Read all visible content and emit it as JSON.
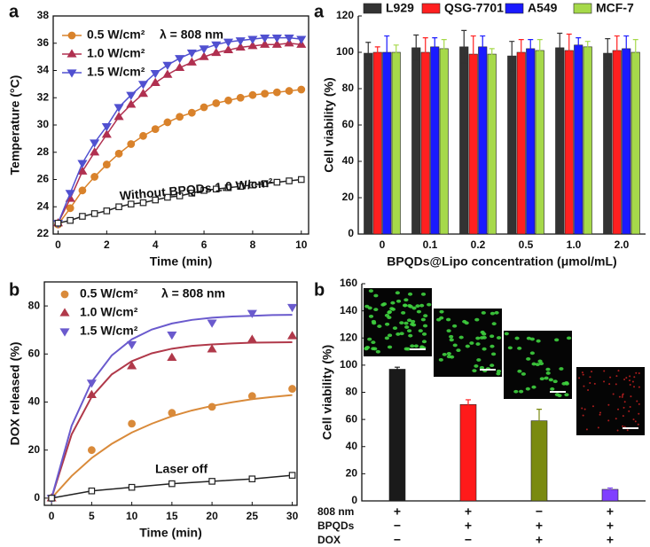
{
  "chart_data": [
    {
      "type": "line",
      "panel_label": "a",
      "x_label": "Time (min)",
      "y_label": "Temperature (°C)",
      "annotation": "λ = 808 nm",
      "x": [
        0,
        0.5,
        1,
        1.5,
        2,
        2.5,
        3,
        3.5,
        4,
        4.5,
        5,
        5.5,
        6,
        6.5,
        7,
        7.5,
        8,
        8.5,
        9,
        9.5,
        10
      ],
      "xlim": [
        -0.2,
        10.3
      ],
      "xticks": [
        0,
        2,
        4,
        6,
        8,
        10
      ],
      "ylim": [
        22,
        38
      ],
      "yticks": [
        22,
        24,
        26,
        28,
        30,
        32,
        34,
        36,
        38
      ],
      "series": [
        {
          "name": "0.5 W/cm²",
          "color": "#d9822b",
          "marker": "circle",
          "in_legend": true,
          "values": [
            22.7,
            23.9,
            25.2,
            26.2,
            27.1,
            27.9,
            28.6,
            29.2,
            29.7,
            30.2,
            30.6,
            30.9,
            31.3,
            31.6,
            31.8,
            32.0,
            32.2,
            32.3,
            32.4,
            32.5,
            32.6
          ]
        },
        {
          "name": "1.0 W/cm²",
          "color": "#b03050",
          "marker": "triangle-up",
          "in_legend": true,
          "values": [
            22.8,
            24.6,
            26.6,
            28.0,
            29.3,
            30.6,
            31.5,
            32.3,
            33.1,
            33.7,
            34.2,
            34.6,
            35.0,
            35.3,
            35.5,
            35.7,
            35.8,
            35.9,
            35.9,
            36.0,
            35.9
          ]
        },
        {
          "name": "1.5 W/cm²",
          "color": "#5050d0",
          "marker": "triangle-down",
          "in_legend": true,
          "values": [
            22.8,
            25.0,
            27.2,
            28.7,
            29.9,
            31.3,
            32.2,
            33.0,
            33.8,
            34.4,
            34.9,
            35.3,
            35.6,
            35.9,
            36.1,
            36.2,
            36.3,
            36.4,
            36.4,
            36.4,
            36.3
          ]
        },
        {
          "name": "Without BPQDs 1.0 W/cm²",
          "color": "#222222",
          "marker": "square",
          "in_legend": false,
          "values": [
            22.8,
            23.0,
            23.3,
            23.5,
            23.7,
            24.0,
            24.2,
            24.3,
            24.5,
            24.7,
            24.8,
            25.0,
            25.2,
            25.3,
            25.4,
            25.5,
            25.6,
            25.7,
            25.8,
            25.9,
            26.0
          ]
        }
      ]
    },
    {
      "type": "bar",
      "panel_label": "a",
      "x_label": "BPQDs@Lipo concentration (μmol/mL)",
      "y_label": "Cell viability (%)",
      "categories": [
        "0",
        "0.1",
        "0.2",
        "0.5",
        "1.0",
        "2.0"
      ],
      "ylim": [
        0,
        120
      ],
      "yticks": [
        0,
        20,
        40,
        60,
        80,
        100,
        120
      ],
      "series": [
        {
          "name": "L929",
          "color": "#333333",
          "values": [
            99.5,
            102.5,
            103,
            98,
            102.5,
            99.5
          ],
          "errors": [
            6,
            7,
            9,
            8,
            8,
            8
          ]
        },
        {
          "name": "QSG-7701",
          "color": "#ff2020",
          "values": [
            100,
            100,
            99,
            100,
            101,
            101
          ],
          "errors": [
            3,
            8,
            10,
            7,
            9,
            8
          ]
        },
        {
          "name": "A549",
          "color": "#1a1aff",
          "values": [
            100,
            103,
            103,
            102,
            104,
            102
          ],
          "errors": [
            9,
            5,
            6,
            5,
            4,
            7
          ]
        },
        {
          "name": "MCF-7",
          "color": "#a6d94a",
          "values": [
            100,
            102,
            99,
            101,
            103,
            100
          ],
          "errors": [
            4,
            5,
            3,
            6,
            3,
            7
          ]
        }
      ]
    },
    {
      "type": "scatter",
      "panel_label": "b",
      "x_label": "Time (min)",
      "y_label": "DOX released (%)",
      "annotation": "λ = 808 nm",
      "x": [
        0,
        5,
        10,
        15,
        20,
        25,
        30
      ],
      "fit_x": [
        0,
        2.5,
        5,
        7.5,
        10,
        12.5,
        15,
        17.5,
        20,
        22.5,
        25,
        27.5,
        30
      ],
      "xlim": [
        -0.9,
        30.6
      ],
      "xticks": [
        0,
        5,
        10,
        15,
        20,
        25,
        30
      ],
      "ylim": [
        -3,
        90
      ],
      "yticks": [
        0,
        20,
        40,
        60,
        80
      ],
      "series": [
        {
          "name": "0.5 W/cm²",
          "color": "#d98a3a",
          "marker": "circle",
          "in_legend": true,
          "values": [
            0,
            20,
            31,
            35.5,
            38,
            42.5,
            45.5
          ],
          "fit_values": [
            0,
            9.2,
            16.7,
            22.6,
            27.3,
            31.0,
            34.1,
            36.5,
            38.4,
            39.9,
            41.2,
            42.1,
            42.9
          ]
        },
        {
          "name": "1.0 W/cm²",
          "color": "#b0394a",
          "marker": "triangle-up",
          "in_legend": true,
          "values": [
            0,
            43,
            55,
            58.5,
            62,
            66,
            67.5
          ],
          "fit_values": [
            0,
            26.5,
            42.2,
            51.5,
            57.0,
            60.3,
            62.2,
            63.4,
            64.0,
            64.4,
            64.7,
            64.8,
            64.9
          ]
        },
        {
          "name": "1.5 W/cm²",
          "color": "#6a5acd",
          "marker": "triangle-down",
          "in_legend": true,
          "values": [
            0,
            48,
            64,
            68,
            73,
            77,
            79.5
          ],
          "fit_values": [
            0,
            30.1,
            48.4,
            59.4,
            66.1,
            70.2,
            72.7,
            74.2,
            75.1,
            75.6,
            75.9,
            76.2,
            76.3
          ]
        },
        {
          "name": "Laser off",
          "color": "#222222",
          "marker": "square",
          "in_legend": false,
          "values": [
            0,
            3,
            4.5,
            6,
            7,
            8,
            9.5
          ]
        }
      ]
    },
    {
      "type": "bar",
      "panel_label": "b",
      "y_label": "Cell viability (%)",
      "ylim": [
        0,
        160
      ],
      "yticks": [
        0,
        20,
        40,
        60,
        80,
        100,
        120,
        140,
        160
      ],
      "values": [
        97,
        71,
        59,
        8.5
      ],
      "errors": [
        1.5,
        3.5,
        8.5,
        1
      ],
      "colors": [
        "#1a1a1a",
        "#ff1a1a",
        "#7a8a10",
        "#8040ff"
      ],
      "conditions": [
        {
          "label": "808 nm",
          "signs": [
            "+",
            "+",
            "−",
            "+"
          ]
        },
        {
          "label": "BPQDs",
          "signs": [
            "−",
            "+",
            "+",
            "+"
          ]
        },
        {
          "label": "DOX",
          "signs": [
            "−",
            "−",
            "+",
            "+"
          ]
        }
      ]
    }
  ]
}
